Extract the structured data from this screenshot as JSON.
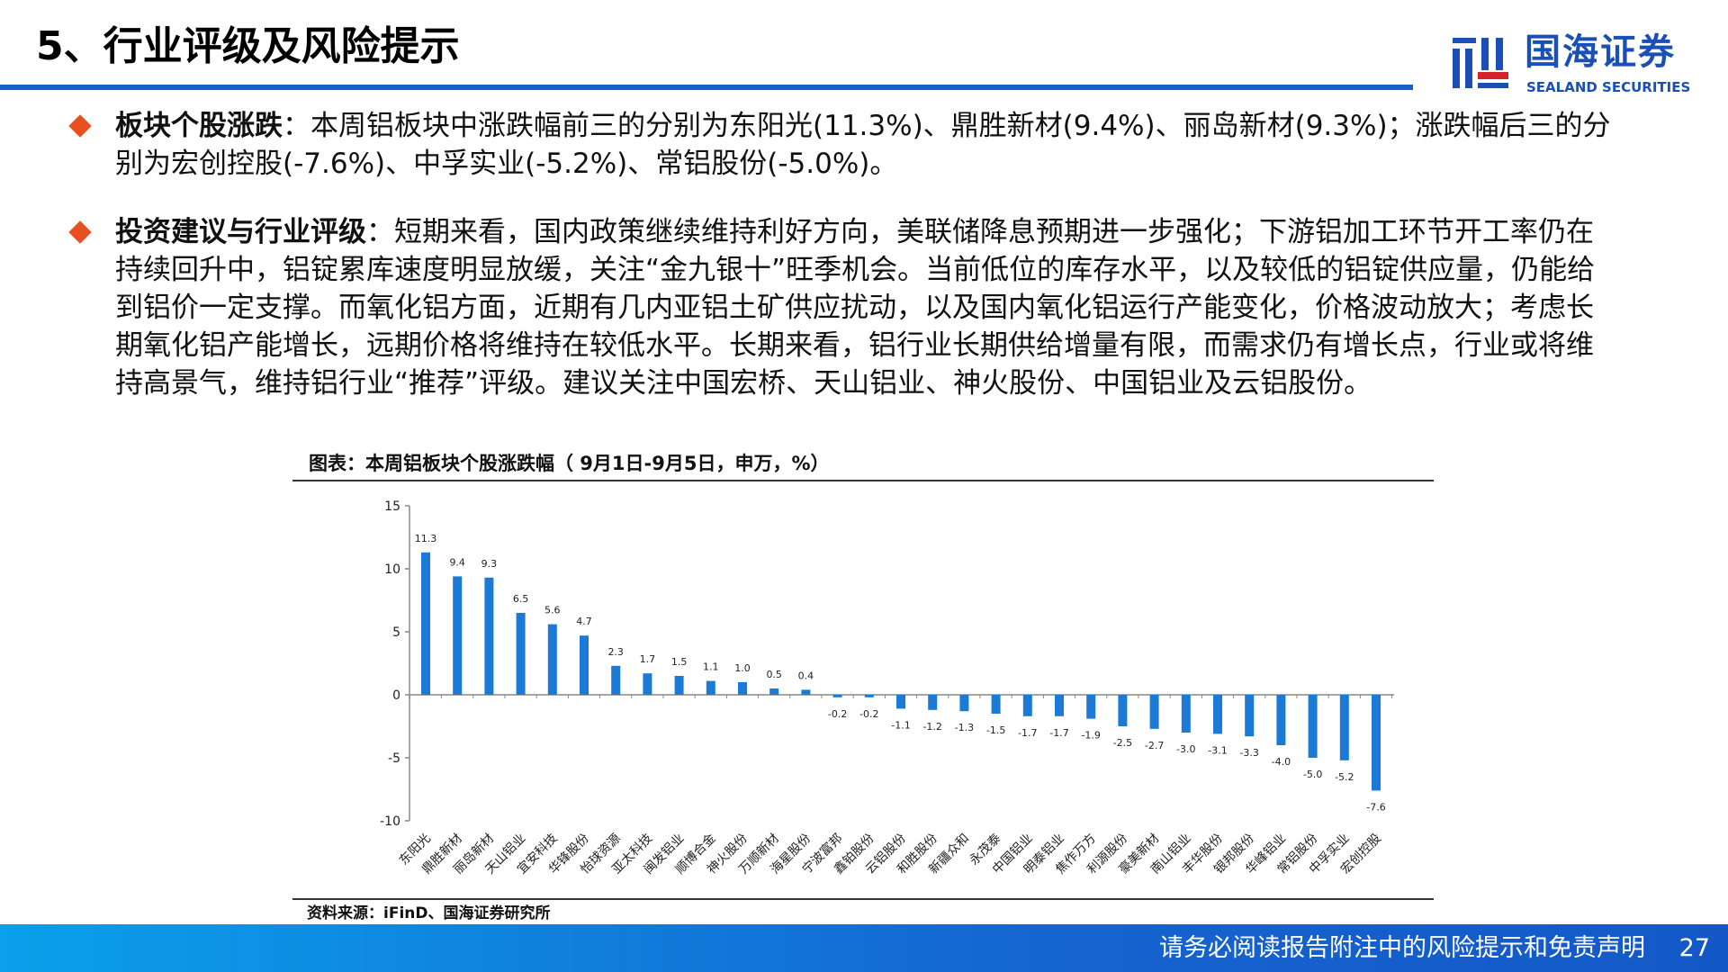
{
  "header": {
    "title": "5、行业评级及风险提示"
  },
  "logo": {
    "cn": "国海证券",
    "en": "SEALAND SECURITIES"
  },
  "bullets": [
    {
      "heading": "板块个股涨跌",
      "sep": "：",
      "body": "本周铝板块中涨跌幅前三的分别为东阳光(11.3%)、鼎胜新材(9.4%)、丽岛新材(9.3%)；涨跌幅后三的分别为宏创控股(-7.6%)、中孚实业(-5.2%)、常铝股份(-5.0%)。"
    },
    {
      "heading": "投资建议与行业评级",
      "sep": "：",
      "body": "短期来看，国内政策继续维持利好方向，美联储降息预期进一步强化；下游铝加工环节开工率仍在持续回升中，铝锭累库速度明显放缓，关注“金九银十”旺季机会。当前低位的库存水平，以及较低的铝锭供应量，仍能给到铝价一定支撑。而氧化铝方面，近期有几内亚铝土矿供应扰动，以及国内氧化铝运行产能变化，价格波动放大；考虑长期氧化铝产能增长，远期价格将维持在较低水平。长期来看，铝行业长期供给增量有限，而需求仍有增长点，行业或将维持高景气，维持铝行业“推荐”评级。建议关注中国宏桥、天山铝业、神火股份、中国铝业及云铝股份。"
    }
  ],
  "chart_data": {
    "type": "bar",
    "title": "图表：本周铝板块个股涨跌幅（ 9月1日-9月5日，申万，%）",
    "categories": [
      "东阳光",
      "鼎胜新材",
      "丽岛新材",
      "天山铝业",
      "宜安科技",
      "华锋股份",
      "怡球资源",
      "亚太科技",
      "闽发铝业",
      "顺博合金",
      "神火股份",
      "万顺新材",
      "海星股份",
      "宁波富邦",
      "鑫铂股份",
      "云铝股份",
      "和胜股份",
      "新疆众和",
      "永茂泰",
      "中国铝业",
      "明泰铝业",
      "焦作万方",
      "利源股份",
      "豪美新材",
      "南山铝业",
      "丰华股份",
      "银邦股份",
      "华峰铝业",
      "常铝股份",
      "中孚实业",
      "宏创控股"
    ],
    "values": [
      11.3,
      9.4,
      9.3,
      6.5,
      5.6,
      4.7,
      2.3,
      1.7,
      1.5,
      1.1,
      1.0,
      0.5,
      0.4,
      -0.2,
      -0.2,
      -1.1,
      -1.2,
      -1.3,
      -1.5,
      -1.7,
      -1.7,
      -1.9,
      -2.5,
      -2.7,
      -3.0,
      -3.1,
      -3.3,
      -4.0,
      -5.0,
      -5.2,
      -7.6
    ],
    "yticks": [
      15,
      10,
      5,
      0,
      -5,
      -10
    ],
    "ylim": [
      -10,
      15
    ],
    "xlabel": "",
    "ylabel": "",
    "grid": false,
    "bar_color": "#1a7ad6",
    "source": "资料来源：iFinD、国海证券研究所"
  },
  "footer": {
    "disclaimer": "请务必阅读报告附注中的风险提示和免责声明",
    "page": "27"
  }
}
